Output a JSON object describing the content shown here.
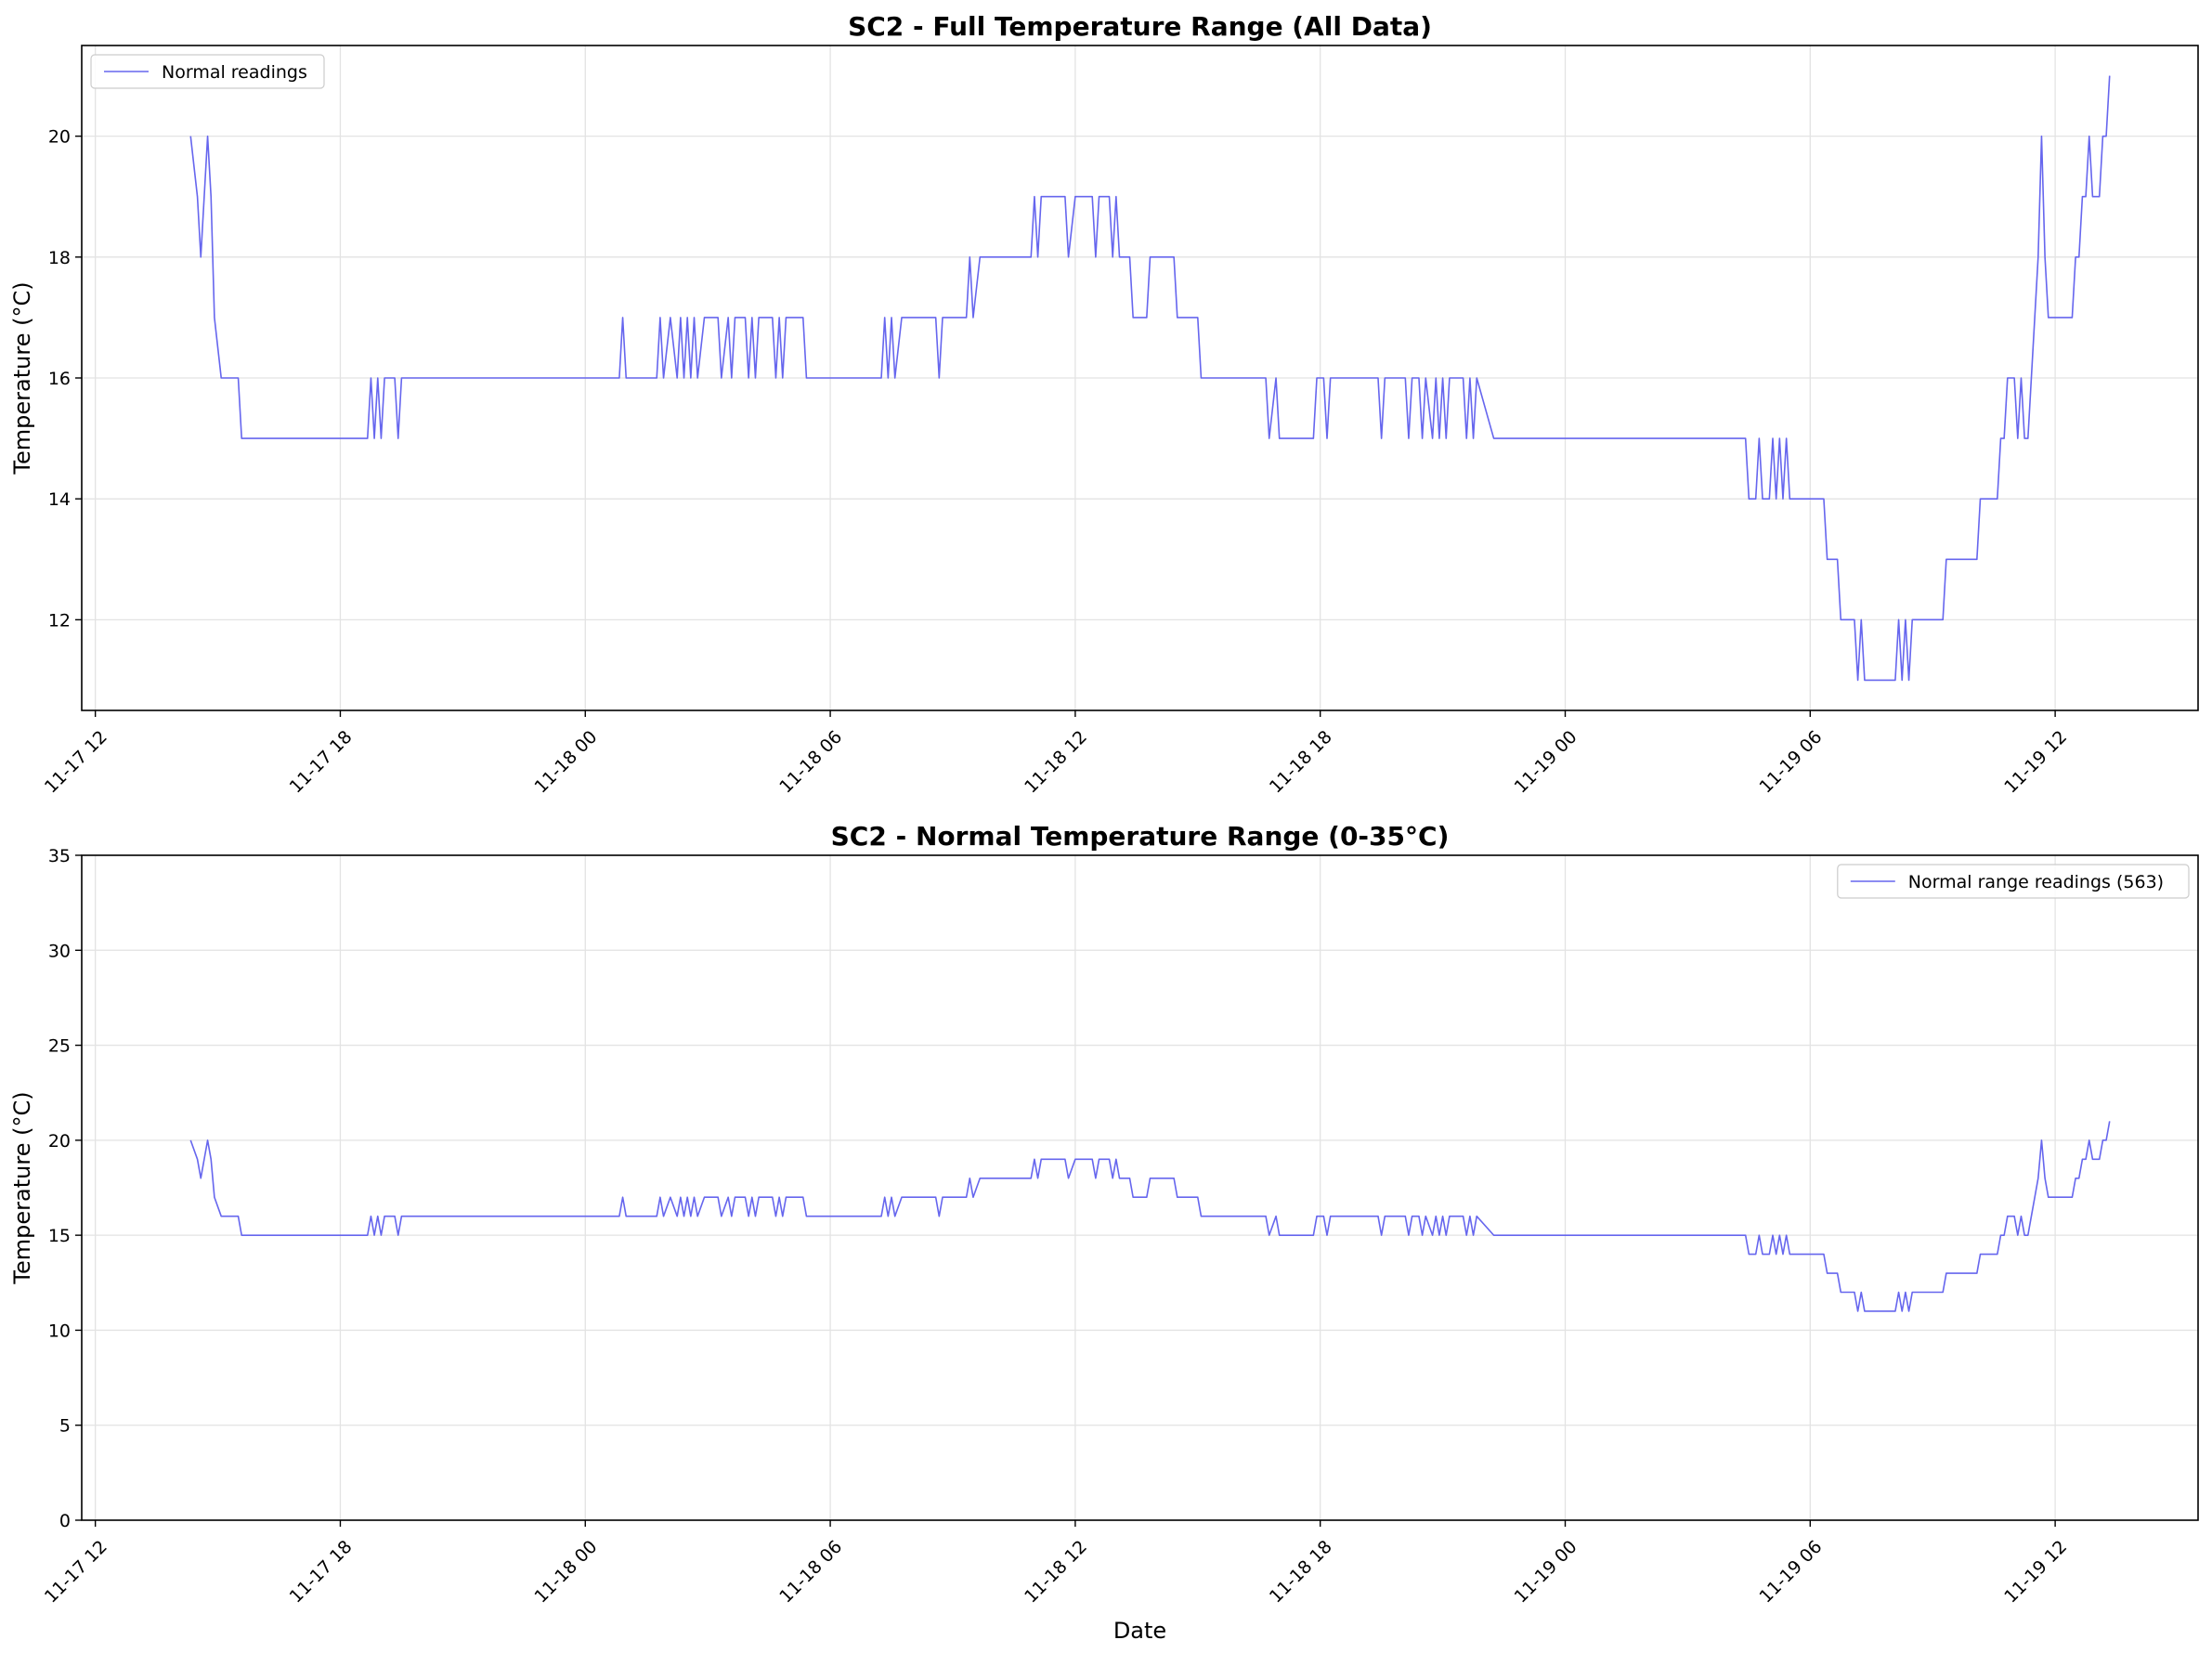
{
  "chart_data": [
    {
      "type": "line",
      "title": "SC2 - Full Temperature Range (All Data)",
      "xlabel": "",
      "ylabel": "Temperature (°C)",
      "x_tick_labels": [
        "11-17 12",
        "11-17 18",
        "11-18 00",
        "11-18 06",
        "11-18 12",
        "11-18 18",
        "11-19 00",
        "11-19 06",
        "11-19 12"
      ],
      "x_ticks": [
        "2023-11-17 12:00",
        "2023-11-17 18:00",
        "2023-11-18 00:00",
        "2023-11-18 06:00",
        "2023-11-18 12:00",
        "2023-11-18 18:00",
        "2023-11-19 00:00",
        "2023-11-19 06:00",
        "2023-11-19 12:00"
      ],
      "xlim": [
        "2023-11-17 11:40",
        "2023-11-19 15:30"
      ],
      "y_ticks": [
        12,
        14,
        16,
        18,
        20
      ],
      "ylim": [
        10.5,
        21.5
      ],
      "grid": true,
      "legend_position": "upper-left",
      "series": [
        {
          "name": "Normal readings",
          "color": "#6666ee",
          "ref": "readings"
        }
      ]
    },
    {
      "type": "line",
      "title": "SC2 - Normal Temperature Range (0-35°C)",
      "xlabel": "Date",
      "ylabel": "Temperature (°C)",
      "x_tick_labels": [
        "11-17 12",
        "11-17 18",
        "11-18 00",
        "11-18 06",
        "11-18 12",
        "11-18 18",
        "11-19 00",
        "11-19 06",
        "11-19 12"
      ],
      "x_ticks": [
        "2023-11-17 12:00",
        "2023-11-17 18:00",
        "2023-11-18 00:00",
        "2023-11-18 06:00",
        "2023-11-18 12:00",
        "2023-11-18 18:00",
        "2023-11-19 00:00",
        "2023-11-19 06:00",
        "2023-11-19 12:00"
      ],
      "xlim": [
        "2023-11-17 11:40",
        "2023-11-19 15:30"
      ],
      "y_ticks": [
        0,
        5,
        10,
        15,
        20,
        25,
        30,
        35
      ],
      "ylim": [
        0,
        35
      ],
      "grid": true,
      "legend_position": "upper-right",
      "series": [
        {
          "name": "Normal range readings (563)",
          "color": "#6666ee",
          "ref": "readings"
        }
      ]
    }
  ],
  "readings": [
    [
      "2023-11-17 14:20",
      20
    ],
    [
      "2023-11-17 14:30",
      19
    ],
    [
      "2023-11-17 14:35",
      18
    ],
    [
      "2023-11-17 14:45",
      20
    ],
    [
      "2023-11-17 14:50",
      19
    ],
    [
      "2023-11-17 14:55",
      17
    ],
    [
      "2023-11-17 15:05",
      16
    ],
    [
      "2023-11-17 15:30",
      16
    ],
    [
      "2023-11-17 15:35",
      15
    ],
    [
      "2023-11-17 18:40",
      15
    ],
    [
      "2023-11-17 18:45",
      16
    ],
    [
      "2023-11-17 18:50",
      15
    ],
    [
      "2023-11-17 18:55",
      16
    ],
    [
      "2023-11-17 19:00",
      15
    ],
    [
      "2023-11-17 19:05",
      16
    ],
    [
      "2023-11-17 19:20",
      16
    ],
    [
      "2023-11-17 19:25",
      15
    ],
    [
      "2023-11-17 19:30",
      16
    ],
    [
      "2023-11-18 00:50",
      16
    ],
    [
      "2023-11-18 00:55",
      17
    ],
    [
      "2023-11-18 01:00",
      16
    ],
    [
      "2023-11-18 01:45",
      16
    ],
    [
      "2023-11-18 01:50",
      17
    ],
    [
      "2023-11-18 01:55",
      16
    ],
    [
      "2023-11-18 02:05",
      17
    ],
    [
      "2023-11-18 02:15",
      16
    ],
    [
      "2023-11-18 02:20",
      17
    ],
    [
      "2023-11-18 02:25",
      16
    ],
    [
      "2023-11-18 02:30",
      17
    ],
    [
      "2023-11-18 02:35",
      16
    ],
    [
      "2023-11-18 02:40",
      17
    ],
    [
      "2023-11-18 02:45",
      16
    ],
    [
      "2023-11-18 02:55",
      17
    ],
    [
      "2023-11-18 03:15",
      17
    ],
    [
      "2023-11-18 03:20",
      16
    ],
    [
      "2023-11-18 03:30",
      17
    ],
    [
      "2023-11-18 03:35",
      16
    ],
    [
      "2023-11-18 03:40",
      17
    ],
    [
      "2023-11-18 03:55",
      17
    ],
    [
      "2023-11-18 04:00",
      16
    ],
    [
      "2023-11-18 04:05",
      17
    ],
    [
      "2023-11-18 04:10",
      16
    ],
    [
      "2023-11-18 04:15",
      17
    ],
    [
      "2023-11-18 04:35",
      17
    ],
    [
      "2023-11-18 04:40",
      16
    ],
    [
      "2023-11-18 04:45",
      17
    ],
    [
      "2023-11-18 04:50",
      16
    ],
    [
      "2023-11-18 04:55",
      17
    ],
    [
      "2023-11-18 05:20",
      17
    ],
    [
      "2023-11-18 05:25",
      16
    ],
    [
      "2023-11-18 07:15",
      16
    ],
    [
      "2023-11-18 07:20",
      17
    ],
    [
      "2023-11-18 07:25",
      16
    ],
    [
      "2023-11-18 07:30",
      17
    ],
    [
      "2023-11-18 07:35",
      16
    ],
    [
      "2023-11-18 07:45",
      17
    ],
    [
      "2023-11-18 08:35",
      17
    ],
    [
      "2023-11-18 08:40",
      16
    ],
    [
      "2023-11-18 08:45",
      17
    ],
    [
      "2023-11-18 09:20",
      17
    ],
    [
      "2023-11-18 09:25",
      18
    ],
    [
      "2023-11-18 09:30",
      17
    ],
    [
      "2023-11-18 09:40",
      18
    ],
    [
      "2023-11-18 10:55",
      18
    ],
    [
      "2023-11-18 11:00",
      19
    ],
    [
      "2023-11-18 11:05",
      18
    ],
    [
      "2023-11-18 11:10",
      19
    ],
    [
      "2023-11-18 11:45",
      19
    ],
    [
      "2023-11-18 11:50",
      18
    ],
    [
      "2023-11-18 12:00",
      19
    ],
    [
      "2023-11-18 12:25",
      19
    ],
    [
      "2023-11-18 12:30",
      18
    ],
    [
      "2023-11-18 12:35",
      19
    ],
    [
      "2023-11-18 12:50",
      19
    ],
    [
      "2023-11-18 12:55",
      18
    ],
    [
      "2023-11-18 13:00",
      19
    ],
    [
      "2023-11-18 13:05",
      18
    ],
    [
      "2023-11-18 13:20",
      18
    ],
    [
      "2023-11-18 13:25",
      17
    ],
    [
      "2023-11-18 13:45",
      17
    ],
    [
      "2023-11-18 13:50",
      18
    ],
    [
      "2023-11-18 14:25",
      18
    ],
    [
      "2023-11-18 14:30",
      17
    ],
    [
      "2023-11-18 15:00",
      17
    ],
    [
      "2023-11-18 15:05",
      16
    ],
    [
      "2023-11-18 16:40",
      16
    ],
    [
      "2023-11-18 16:45",
      15
    ],
    [
      "2023-11-18 16:55",
      16
    ],
    [
      "2023-11-18 17:00",
      15
    ],
    [
      "2023-11-18 17:50",
      15
    ],
    [
      "2023-11-18 17:55",
      16
    ],
    [
      "2023-11-18 18:05",
      16
    ],
    [
      "2023-11-18 18:10",
      15
    ],
    [
      "2023-11-18 18:15",
      16
    ],
    [
      "2023-11-18 19:25",
      16
    ],
    [
      "2023-11-18 19:30",
      15
    ],
    [
      "2023-11-18 19:35",
      16
    ],
    [
      "2023-11-18 20:05",
      16
    ],
    [
      "2023-11-18 20:10",
      15
    ],
    [
      "2023-11-18 20:15",
      16
    ],
    [
      "2023-11-18 20:25",
      16
    ],
    [
      "2023-11-18 20:30",
      15
    ],
    [
      "2023-11-18 20:35",
      16
    ],
    [
      "2023-11-18 20:45",
      15
    ],
    [
      "2023-11-18 20:50",
      16
    ],
    [
      "2023-11-18 20:55",
      15
    ],
    [
      "2023-11-18 21:00",
      16
    ],
    [
      "2023-11-18 21:05",
      15
    ],
    [
      "2023-11-18 21:10",
      16
    ],
    [
      "2023-11-18 21:30",
      16
    ],
    [
      "2023-11-18 21:35",
      15
    ],
    [
      "2023-11-18 21:40",
      16
    ],
    [
      "2023-11-18 21:45",
      15
    ],
    [
      "2023-11-18 21:50",
      16
    ],
    [
      "2023-11-18 22:15",
      15
    ],
    [
      "2023-11-19 04:25",
      15
    ],
    [
      "2023-11-19 04:30",
      14
    ],
    [
      "2023-11-19 04:40",
      14
    ],
    [
      "2023-11-19 04:45",
      15
    ],
    [
      "2023-11-19 04:50",
      14
    ],
    [
      "2023-11-19 05:00",
      14
    ],
    [
      "2023-11-19 05:05",
      15
    ],
    [
      "2023-11-19 05:10",
      14
    ],
    [
      "2023-11-19 05:15",
      15
    ],
    [
      "2023-11-19 05:20",
      14
    ],
    [
      "2023-11-19 05:25",
      15
    ],
    [
      "2023-11-19 05:30",
      14
    ],
    [
      "2023-11-19 06:20",
      14
    ],
    [
      "2023-11-19 06:25",
      13
    ],
    [
      "2023-11-19 06:40",
      13
    ],
    [
      "2023-11-19 06:45",
      12
    ],
    [
      "2023-11-19 07:05",
      12
    ],
    [
      "2023-11-19 07:10",
      11
    ],
    [
      "2023-11-19 07:15",
      12
    ],
    [
      "2023-11-19 07:20",
      11
    ],
    [
      "2023-11-19 08:05",
      11
    ],
    [
      "2023-11-19 08:10",
      12
    ],
    [
      "2023-11-19 08:15",
      11
    ],
    [
      "2023-11-19 08:20",
      12
    ],
    [
      "2023-11-19 08:25",
      11
    ],
    [
      "2023-11-19 08:30",
      12
    ],
    [
      "2023-11-19 09:15",
      12
    ],
    [
      "2023-11-19 09:20",
      13
    ],
    [
      "2023-11-19 10:05",
      13
    ],
    [
      "2023-11-19 10:10",
      14
    ],
    [
      "2023-11-19 10:35",
      14
    ],
    [
      "2023-11-19 10:40",
      15
    ],
    [
      "2023-11-19 10:45",
      15
    ],
    [
      "2023-11-19 10:50",
      16
    ],
    [
      "2023-11-19 11:00",
      16
    ],
    [
      "2023-11-19 11:05",
      15
    ],
    [
      "2023-11-19 11:10",
      16
    ],
    [
      "2023-11-19 11:15",
      15
    ],
    [
      "2023-11-19 11:20",
      15
    ],
    [
      "2023-11-19 11:25",
      16
    ],
    [
      "2023-11-19 11:30",
      17
    ],
    [
      "2023-11-19 11:35",
      18
    ],
    [
      "2023-11-19 11:40",
      20
    ],
    [
      "2023-11-19 11:45",
      18
    ],
    [
      "2023-11-19 11:50",
      17
    ],
    [
      "2023-11-19 12:25",
      17
    ],
    [
      "2023-11-19 12:30",
      18
    ],
    [
      "2023-11-19 12:35",
      18
    ],
    [
      "2023-11-19 12:40",
      19
    ],
    [
      "2023-11-19 12:45",
      19
    ],
    [
      "2023-11-19 12:50",
      20
    ],
    [
      "2023-11-19 12:55",
      19
    ],
    [
      "2023-11-19 13:05",
      19
    ],
    [
      "2023-11-19 13:10",
      20
    ],
    [
      "2023-11-19 13:15",
      20
    ],
    [
      "2023-11-19 13:20",
      21
    ]
  ]
}
